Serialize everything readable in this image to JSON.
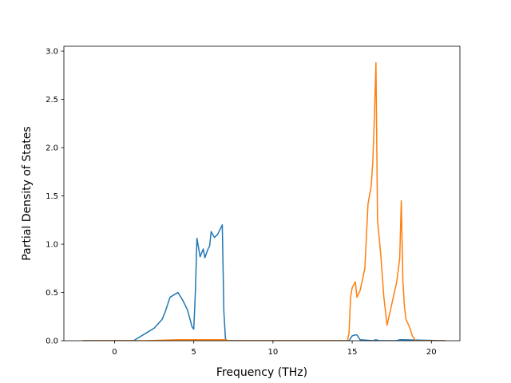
{
  "chart_data": {
    "type": "line",
    "title": "",
    "xlabel": "Frequency (THz)",
    "ylabel": "Partial Density of States",
    "xlim": [
      -3.2,
      21.8
    ],
    "ylim": [
      0,
      3.05
    ],
    "xticks": [
      0,
      5,
      10,
      15,
      20
    ],
    "xtick_labels": [
      "0",
      "5",
      "10",
      "15",
      "20"
    ],
    "yticks": [
      0.0,
      0.5,
      1.0,
      1.5,
      2.0,
      2.5,
      3.0
    ],
    "ytick_labels": [
      "0.0",
      "0.5",
      "1.0",
      "1.5",
      "2.0",
      "2.5",
      "3.0"
    ],
    "grid": false,
    "legend": false,
    "series": [
      {
        "color": "#1f77b4",
        "x": [
          -2.0,
          1.2,
          1.5,
          2.0,
          2.5,
          3.0,
          3.2,
          3.5,
          3.8,
          4.0,
          4.3,
          4.6,
          4.8,
          4.9,
          5.0,
          5.1,
          5.2,
          5.4,
          5.6,
          5.7,
          5.9,
          6.0,
          6.1,
          6.3,
          6.5,
          6.8,
          6.9,
          7.0,
          7.1,
          10.0,
          14.8,
          15.0,
          15.2,
          15.3,
          15.5,
          16.3,
          16.5,
          16.7,
          17.8,
          18.0,
          18.2,
          20.9
        ],
        "y": [
          0.0,
          0.0,
          0.03,
          0.08,
          0.13,
          0.22,
          0.3,
          0.45,
          0.48,
          0.5,
          0.42,
          0.32,
          0.2,
          0.14,
          0.12,
          0.5,
          1.06,
          0.87,
          0.95,
          0.86,
          0.95,
          0.98,
          1.13,
          1.07,
          1.1,
          1.2,
          0.3,
          0.02,
          0.0,
          0.0,
          0.0,
          0.05,
          0.06,
          0.06,
          0.01,
          0.0,
          0.01,
          0.0,
          0.0,
          0.01,
          0.01,
          0.0
        ]
      },
      {
        "color": "#ff7f0e",
        "x": [
          -2.0,
          2.0,
          4.0,
          5.0,
          6.0,
          7.0,
          7.2,
          14.7,
          14.8,
          14.9,
          15.0,
          15.2,
          15.3,
          15.5,
          15.8,
          16.0,
          16.2,
          16.3,
          16.4,
          16.5,
          16.6,
          16.8,
          17.0,
          17.2,
          17.5,
          17.8,
          17.9,
          18.0,
          18.1,
          18.2,
          18.3,
          18.4,
          18.6,
          18.8,
          19.0,
          19.5,
          20.9
        ],
        "y": [
          0.0,
          0.0,
          0.01,
          0.01,
          0.01,
          0.01,
          0.0,
          0.0,
          0.08,
          0.45,
          0.55,
          0.61,
          0.45,
          0.52,
          0.75,
          1.42,
          1.6,
          1.85,
          2.3,
          2.88,
          1.25,
          0.9,
          0.45,
          0.16,
          0.38,
          0.6,
          0.72,
          0.85,
          1.45,
          0.62,
          0.35,
          0.22,
          0.15,
          0.05,
          0.0,
          0.0,
          0.0
        ]
      }
    ]
  }
}
